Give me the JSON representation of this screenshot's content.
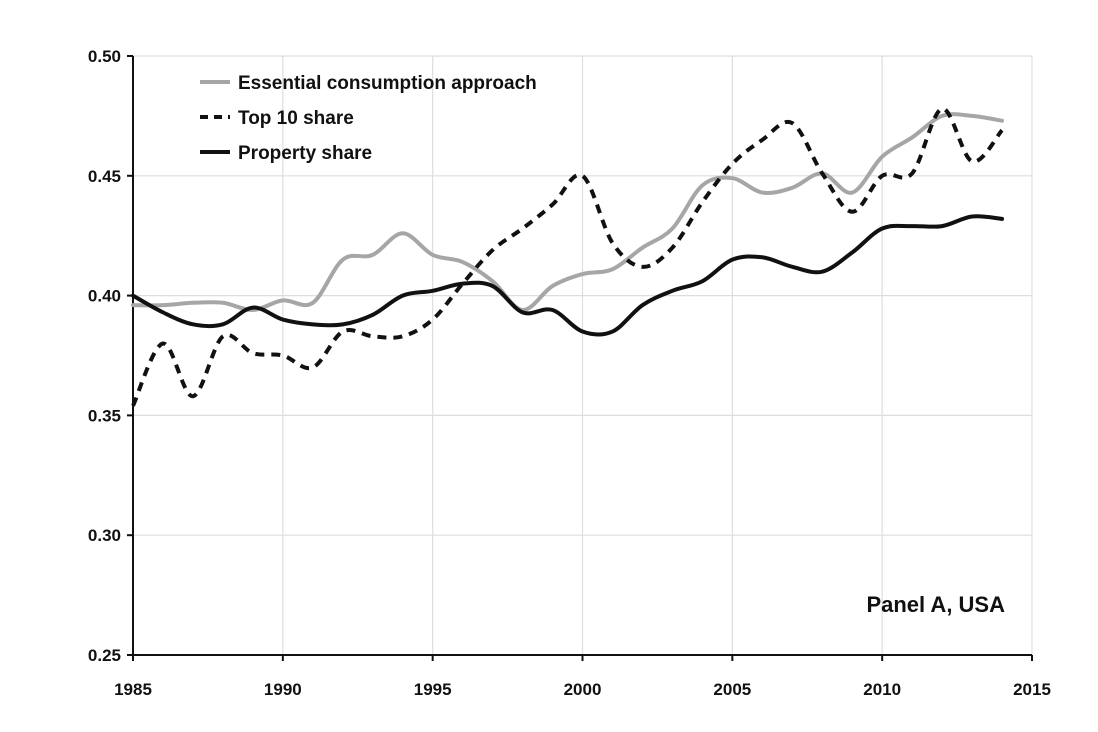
{
  "chart_data": {
    "type": "line",
    "title": "",
    "xlabel": "",
    "ylabel": "",
    "xlim": [
      1985,
      2015
    ],
    "ylim": [
      0.25,
      0.5
    ],
    "x_ticks": [
      "1985",
      "1990",
      "1995",
      "2000",
      "2005",
      "2010",
      "2015"
    ],
    "y_ticks": [
      "0.25",
      "0.30",
      "0.35",
      "0.40",
      "0.45",
      "0.50"
    ],
    "grid": true,
    "legend_position": "top-left",
    "annotation": "Panel A, USA",
    "x": [
      1985,
      1986,
      1987,
      1988,
      1989,
      1990,
      1991,
      1992,
      1993,
      1994,
      1995,
      1996,
      1997,
      1998,
      1999,
      2000,
      2001,
      2002,
      2003,
      2004,
      2005,
      2006,
      2007,
      2008,
      2009,
      2010,
      2011,
      2012,
      2013,
      2014
    ],
    "series": [
      {
        "name": "Essential consumption approach",
        "style": "solid",
        "color": "#a6a6a6",
        "values": [
          0.396,
          0.396,
          0.397,
          0.397,
          0.394,
          0.398,
          0.397,
          0.415,
          0.417,
          0.426,
          0.417,
          0.414,
          0.406,
          0.394,
          0.404,
          0.409,
          0.411,
          0.42,
          0.428,
          0.446,
          0.449,
          0.443,
          0.445,
          0.451,
          0.443,
          0.458,
          0.466,
          0.475,
          0.475,
          0.473
        ]
      },
      {
        "name": "Top 10 share",
        "style": "dashed",
        "color": "#111111",
        "values": [
          0.354,
          0.38,
          0.358,
          0.383,
          0.376,
          0.375,
          0.37,
          0.385,
          0.383,
          0.383,
          0.39,
          0.405,
          0.419,
          0.428,
          0.438,
          0.45,
          0.422,
          0.412,
          0.42,
          0.439,
          0.455,
          0.465,
          0.472,
          0.451,
          0.435,
          0.45,
          0.451,
          0.478,
          0.456,
          0.469
        ]
      },
      {
        "name": "Property share",
        "style": "solid",
        "color": "#111111",
        "values": [
          0.4,
          0.393,
          0.388,
          0.388,
          0.395,
          0.39,
          0.388,
          0.388,
          0.392,
          0.4,
          0.402,
          0.405,
          0.404,
          0.393,
          0.394,
          0.385,
          0.385,
          0.396,
          0.402,
          0.406,
          0.415,
          0.416,
          0.412,
          0.41,
          0.418,
          0.428,
          0.429,
          0.429,
          0.433,
          0.432
        ]
      }
    ]
  }
}
